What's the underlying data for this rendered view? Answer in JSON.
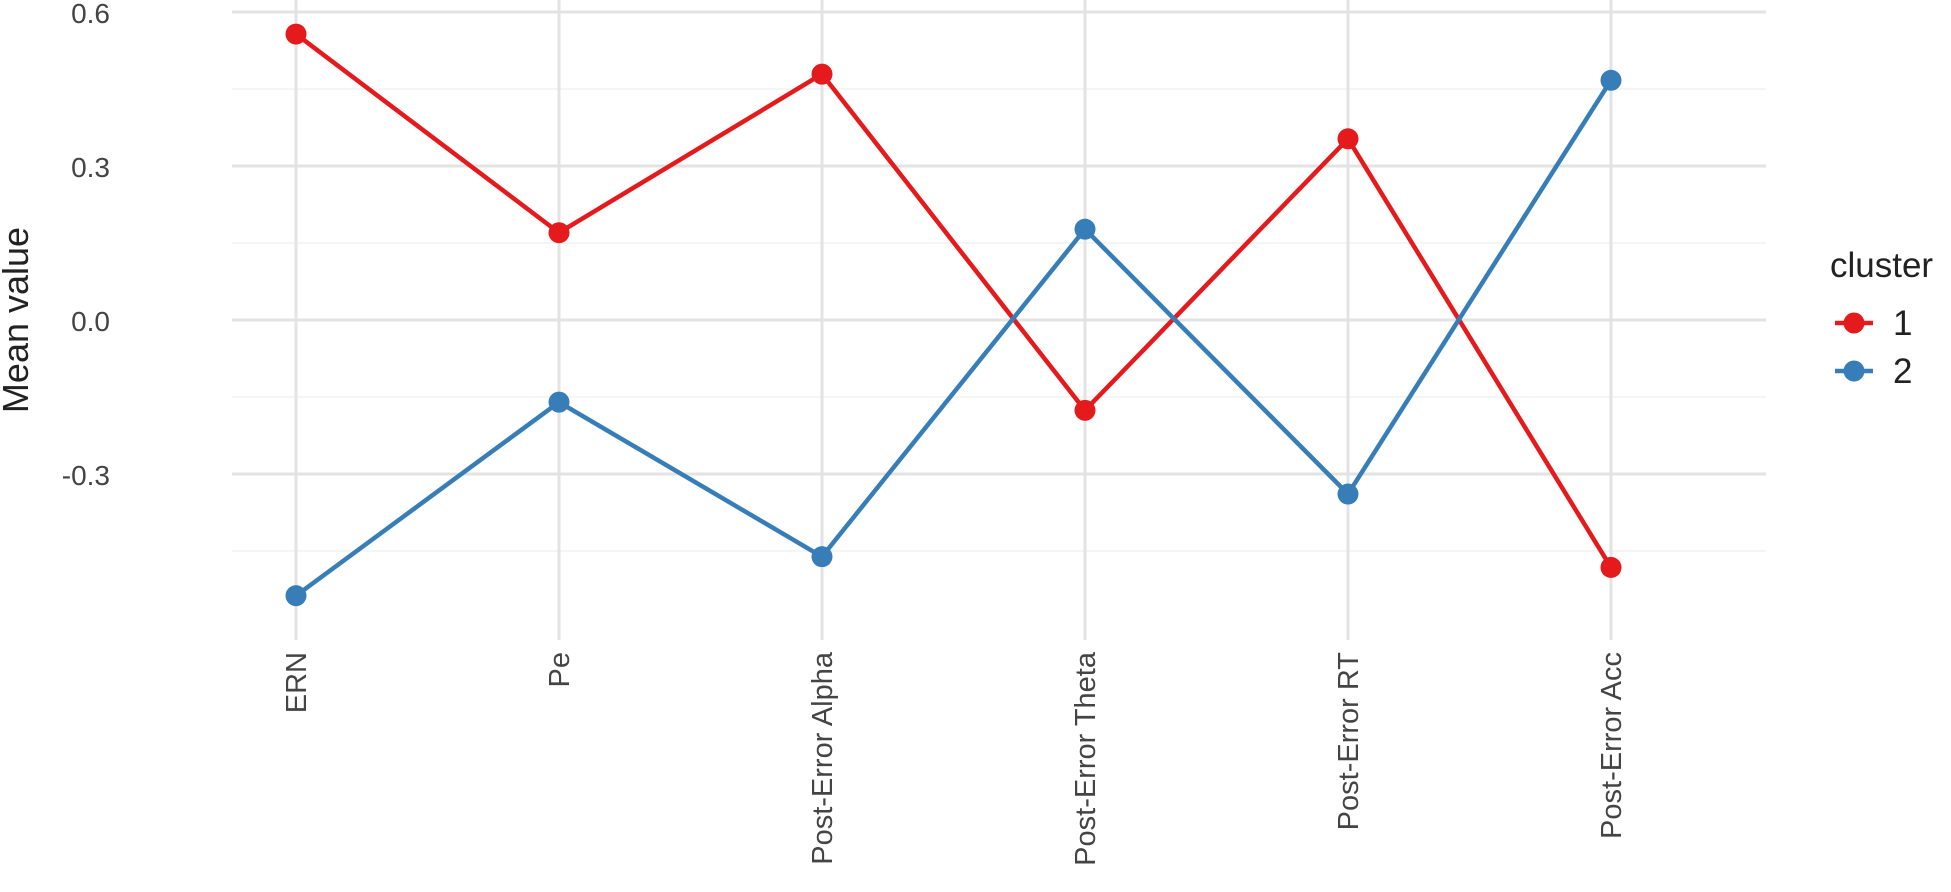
{
  "chart_data": {
    "type": "line",
    "title": "",
    "xlabel": "",
    "ylabel": "Mean value",
    "categories": [
      "ERN",
      "Pe",
      "Post-Error Alpha",
      "Post-Error Theta",
      "Post-Error RT",
      "Post-Error Acc"
    ],
    "y_ticks": [
      0.6,
      0.3,
      0.0,
      -0.3
    ],
    "y_tick_labels": [
      "0.6",
      "0.3",
      "0.0",
      "-0.3"
    ],
    "ylim": [
      -0.6,
      0.6
    ],
    "grid": true,
    "legend": {
      "title": "cluster",
      "placement": "right"
    },
    "series": [
      {
        "name": "1",
        "color": "#e41a1c",
        "values": [
          0.557,
          0.17,
          0.479,
          -0.176,
          0.353,
          -0.482
        ]
      },
      {
        "name": "2",
        "color": "#377eb8",
        "values": [
          -0.537,
          -0.16,
          -0.461,
          0.177,
          -0.339,
          0.467
        ]
      }
    ]
  }
}
